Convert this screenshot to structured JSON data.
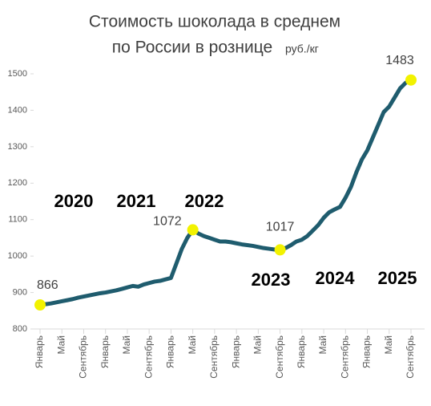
{
  "chart_data": {
    "type": "line",
    "title_lines": [
      "Стоимость шоколада в среднем",
      "по России в рознице"
    ],
    "unit": "руб./кг",
    "categories": [
      "Январь",
      null,
      null,
      null,
      "Май",
      null,
      null,
      null,
      "Сентябрь",
      null,
      null,
      null,
      "Январь",
      null,
      null,
      null,
      "Май",
      null,
      null,
      null,
      "Сентябрь",
      null,
      null,
      null,
      "Январь",
      null,
      null,
      null,
      "Май",
      null,
      null,
      null,
      "Сентябрь",
      null,
      null,
      null,
      "Январь",
      null,
      null,
      null,
      "Май",
      null,
      null,
      null,
      "Сентябрь",
      null,
      null,
      null,
      "Январь",
      null,
      null,
      null,
      "Май",
      null,
      null,
      null,
      "Сентябрь",
      null,
      null,
      null,
      "Январь",
      null,
      null,
      null,
      "Май",
      null,
      null,
      null,
      "Сентябрь"
    ],
    "series": [
      {
        "name": "Стоимость",
        "color": "#1f5c6e",
        "values": [
          866,
          868,
          870,
          873,
          876,
          879,
          882,
          886,
          889,
          892,
          895,
          898,
          900,
          903,
          906,
          910,
          914,
          918,
          916,
          922,
          926,
          930,
          932,
          936,
          940,
          980,
          1020,
          1050,
          1072,
          1062,
          1055,
          1050,
          1045,
          1040,
          1040,
          1038,
          1035,
          1032,
          1030,
          1028,
          1025,
          1022,
          1020,
          1018,
          1017,
          1022,
          1030,
          1040,
          1045,
          1055,
          1070,
          1085,
          1105,
          1120,
          1128,
          1135,
          1160,
          1190,
          1230,
          1265,
          1290,
          1325,
          1360,
          1395,
          1410,
          1435,
          1460,
          1475,
          1483
        ]
      }
    ],
    "labeled_points": [
      0,
      28,
      44,
      68
    ],
    "highlight_color": "#f2f200",
    "years": [
      "2020",
      "2021",
      "2022",
      "2023",
      "2024",
      "2025"
    ],
    "ylim": [
      800,
      1500
    ],
    "yticks": [
      800,
      900,
      1000,
      1100,
      1200,
      1300,
      1400,
      1500
    ],
    "grid": false
  }
}
